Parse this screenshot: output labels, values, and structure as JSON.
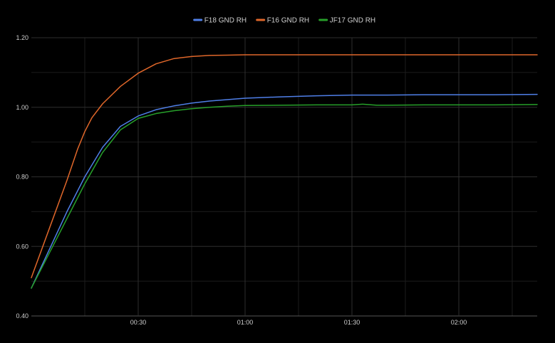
{
  "chart_data": {
    "type": "line",
    "title": "",
    "xlabel": "",
    "ylabel": "",
    "xlim": [
      0,
      142
    ],
    "ylim": [
      0.4,
      1.2
    ],
    "grid": true,
    "legend_position": "top-center",
    "y_ticks": [
      {
        "value": 0.4,
        "label": "0.40"
      },
      {
        "value": 0.6,
        "label": "0.60"
      },
      {
        "value": 0.8,
        "label": "0.80"
      },
      {
        "value": 1.0,
        "label": "1.00"
      },
      {
        "value": 1.2,
        "label": "1.20"
      }
    ],
    "x_ticks": [
      {
        "value": 30,
        "label": "00:30"
      },
      {
        "value": 60,
        "label": "01:00"
      },
      {
        "value": 90,
        "label": "01:30"
      },
      {
        "value": 120,
        "label": "02:00"
      }
    ],
    "x_minor_ticks": [
      15,
      45,
      75,
      105,
      135
    ],
    "y_minor_ticks": [
      0.5,
      0.7,
      0.9,
      1.1
    ],
    "series": [
      {
        "name": "F18 GND RH",
        "color": "#4f7fe8",
        "points": [
          [
            0,
            0.48
          ],
          [
            5,
            0.59
          ],
          [
            10,
            0.7
          ],
          [
            15,
            0.8
          ],
          [
            20,
            0.885
          ],
          [
            25,
            0.945
          ],
          [
            30,
            0.975
          ],
          [
            35,
            0.993
          ],
          [
            40,
            1.004
          ],
          [
            45,
            1.012
          ],
          [
            50,
            1.018
          ],
          [
            55,
            1.022
          ],
          [
            60,
            1.026
          ],
          [
            70,
            1.03
          ],
          [
            80,
            1.033
          ],
          [
            90,
            1.035
          ],
          [
            100,
            1.035
          ],
          [
            110,
            1.036
          ],
          [
            120,
            1.036
          ],
          [
            130,
            1.036
          ],
          [
            142,
            1.037
          ]
        ]
      },
      {
        "name": "F16 GND RH",
        "color": "#e0672a",
        "points": [
          [
            0,
            0.51
          ],
          [
            5,
            0.65
          ],
          [
            10,
            0.79
          ],
          [
            13,
            0.88
          ],
          [
            15,
            0.93
          ],
          [
            17,
            0.97
          ],
          [
            20,
            1.01
          ],
          [
            25,
            1.06
          ],
          [
            30,
            1.098
          ],
          [
            35,
            1.125
          ],
          [
            40,
            1.14
          ],
          [
            45,
            1.146
          ],
          [
            50,
            1.149
          ],
          [
            55,
            1.15
          ],
          [
            60,
            1.151
          ],
          [
            70,
            1.151
          ],
          [
            80,
            1.151
          ],
          [
            90,
            1.151
          ],
          [
            100,
            1.151
          ],
          [
            110,
            1.151
          ],
          [
            120,
            1.151
          ],
          [
            130,
            1.151
          ],
          [
            142,
            1.151
          ]
        ]
      },
      {
        "name": "JF17 GND RH",
        "color": "#27a02a",
        "points": [
          [
            0,
            0.48
          ],
          [
            5,
            0.58
          ],
          [
            10,
            0.68
          ],
          [
            15,
            0.78
          ],
          [
            20,
            0.87
          ],
          [
            25,
            0.935
          ],
          [
            30,
            0.968
          ],
          [
            35,
            0.982
          ],
          [
            40,
            0.99
          ],
          [
            45,
            0.996
          ],
          [
            50,
            1.0
          ],
          [
            55,
            1.003
          ],
          [
            60,
            1.005
          ],
          [
            70,
            1.006
          ],
          [
            80,
            1.007
          ],
          [
            90,
            1.007
          ],
          [
            93,
            1.009
          ],
          [
            97,
            1.006
          ],
          [
            100,
            1.006
          ],
          [
            110,
            1.007
          ],
          [
            120,
            1.007
          ],
          [
            130,
            1.007
          ],
          [
            142,
            1.008
          ]
        ]
      }
    ]
  }
}
